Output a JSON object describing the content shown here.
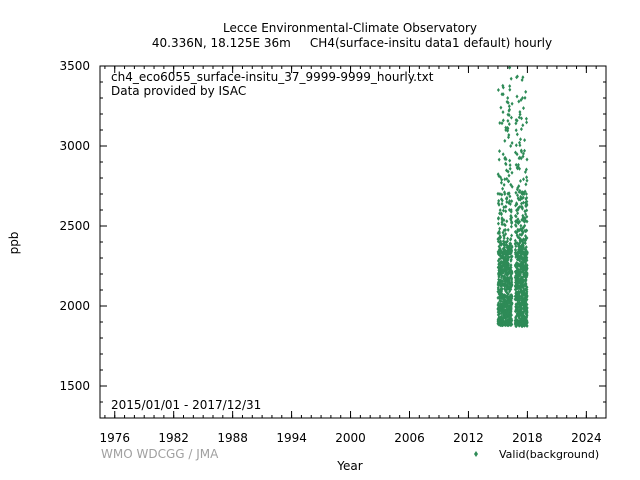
{
  "chart_data": {
    "type": "scatter",
    "title": "Lecce Environmental-Climate Observatory",
    "subtitle": "40.336N, 18.125E 36m     CH4(surface-insitu data1 default) hourly",
    "xlabel": "Year",
    "ylabel": "ppb",
    "xlim": [
      1974.5,
      2026.0
    ],
    "ylim": [
      1300,
      3500
    ],
    "x_ticks": [
      1976,
      1982,
      1988,
      1994,
      2000,
      2006,
      2012,
      2018,
      2024
    ],
    "x_tick_labels": [
      "1976",
      "1982",
      "1988",
      "1994",
      "2000",
      "2006",
      "2012",
      "2018",
      "2024"
    ],
    "y_ticks": [
      1500,
      2000,
      2500,
      3000,
      3500
    ],
    "y_tick_labels": [
      "1500",
      "2000",
      "2500",
      "3000",
      "3500"
    ],
    "annotations": [
      "ch4_eco6055_surface-insitu_37_9999-9999_hourly.txt",
      "Data provided by ISAC",
      "2015/01/01 - 2017/12/31"
    ],
    "credit": "WMO WDCGG / JMA",
    "legend": {
      "placement": "bottom-right",
      "label": "Valid(background)"
    },
    "grid": false,
    "series": [
      {
        "name": "Valid(background)",
        "color": "#2e8b57",
        "bands": [
          {
            "x_start": 2015.0,
            "x_end": 2016.45,
            "dense_min": 1880,
            "dense_max": 2330,
            "sparse_max": 3490
          },
          {
            "x_start": 2016.75,
            "x_end": 2017.99,
            "dense_min": 1875,
            "dense_max": 2330,
            "sparse_max": 3440
          }
        ],
        "points": [
          {
            "x": 2015.05,
            "y": 3350
          },
          {
            "x": 2015.3,
            "y": 3240
          },
          {
            "x": 2015.55,
            "y": 3160
          },
          {
            "x": 2015.8,
            "y": 3100
          },
          {
            "x": 2016.0,
            "y": 3300
          },
          {
            "x": 2016.2,
            "y": 3490
          },
          {
            "x": 2016.35,
            "y": 3420
          },
          {
            "x": 2015.7,
            "y": 2920
          },
          {
            "x": 2016.1,
            "y": 2780
          },
          {
            "x": 2015.2,
            "y": 2700
          },
          {
            "x": 2015.9,
            "y": 2650
          },
          {
            "x": 2016.3,
            "y": 3000
          },
          {
            "x": 2016.9,
            "y": 3430
          },
          {
            "x": 2017.5,
            "y": 3300
          },
          {
            "x": 2017.9,
            "y": 3170
          },
          {
            "x": 2017.2,
            "y": 3020
          },
          {
            "x": 2017.7,
            "y": 2970
          },
          {
            "x": 2017.0,
            "y": 2860
          },
          {
            "x": 2017.85,
            "y": 2760
          },
          {
            "x": 2017.4,
            "y": 2640
          },
          {
            "x": 2016.85,
            "y": 2560
          }
        ]
      }
    ]
  }
}
